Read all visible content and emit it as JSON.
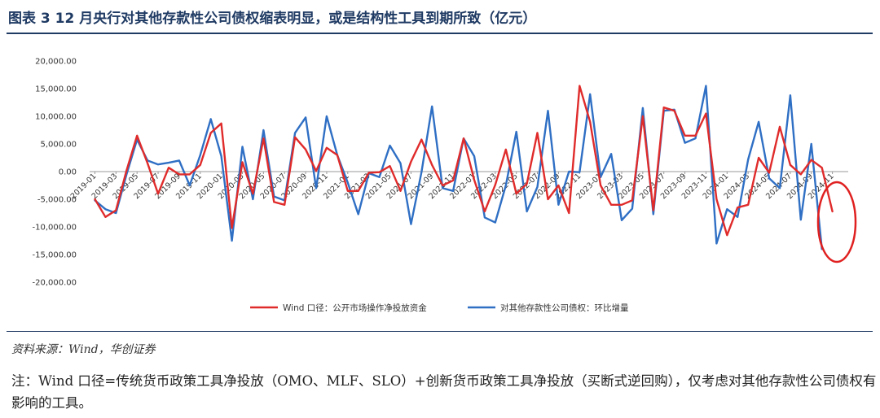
{
  "figure": {
    "title": "图表 3   12 月央行对其他存款性公司债权缩表明显，或是结构性工具到期所致（亿元）",
    "source": "资料来源：Wind，华创证券",
    "note": "注：Wind 口径=传统货币政策工具净投放（OMO、MLF、SLO）+创新货币政策工具净投放（买断式逆回购），仅考虑对其他存款性公司债权有影响的工具。"
  },
  "colors": {
    "series_red": "#e02b2b",
    "series_blue": "#2f6fc4",
    "highlight": "#e02020",
    "title": "#1f3a63"
  },
  "chart_data": {
    "type": "line",
    "title": "",
    "xlabel": "",
    "ylabel": "",
    "ylim": [
      -20000,
      20000
    ],
    "yticks": [
      -20000,
      -15000,
      -10000,
      -5000,
      0,
      5000,
      10000,
      15000,
      20000
    ],
    "ytick_labels": [
      "-20,000.00",
      "-15,000.00",
      "-10,000.00",
      "-5,000.00",
      "0.00",
      "5,000.00",
      "10,000.00",
      "15,000.00",
      "20,000.00"
    ],
    "x": [
      "2019-01",
      "2019-02",
      "2019-03",
      "2019-04",
      "2019-05",
      "2019-06",
      "2019-07",
      "2019-08",
      "2019-09",
      "2019-10",
      "2019-11",
      "2019-12",
      "2020-01",
      "2020-02",
      "2020-03",
      "2020-04",
      "2020-05",
      "2020-06",
      "2020-07",
      "2020-08",
      "2020-09",
      "2020-10",
      "2020-11",
      "2020-12",
      "2021-01",
      "2021-02",
      "2021-03",
      "2021-04",
      "2021-05",
      "2021-06",
      "2021-07",
      "2021-08",
      "2021-09",
      "2021-10",
      "2021-11",
      "2021-12",
      "2022-01",
      "2022-02",
      "2022-03",
      "2022-04",
      "2022-05",
      "2022-06",
      "2022-07",
      "2022-08",
      "2022-09",
      "2022-10",
      "2022-11",
      "2022-12",
      "2023-01",
      "2023-02",
      "2023-03",
      "2023-04",
      "2023-05",
      "2023-06",
      "2023-07",
      "2023-08",
      "2023-09",
      "2023-10",
      "2023-11",
      "2023-12",
      "2024-01",
      "2024-02",
      "2024-03",
      "2024-04",
      "2024-05",
      "2024-06",
      "2024-07",
      "2024-08",
      "2024-09",
      "2024-10",
      "2024-11",
      "2024-12"
    ],
    "tick_labels": [
      "2019-01",
      "2019-03",
      "2019-05",
      "2019-07",
      "2019-09",
      "2019-11",
      "2020-01",
      "2020-03",
      "2020-05",
      "2020-07",
      "2020-09",
      "2020-11",
      "2021-01",
      "2021-03",
      "2021-05",
      "2021-07",
      "2021-09",
      "2021-11",
      "2022-01",
      "2022-03",
      "2022-05",
      "2022-07",
      "2022-09",
      "2022-11",
      "2023-01",
      "2023-03",
      "2023-05",
      "2023-07",
      "2023-09",
      "2023-11",
      "2024-01",
      "2024-03",
      "2024-05",
      "2024-07",
      "2024-09",
      "2024-11"
    ],
    "legend_position": "bottom-center",
    "series": [
      {
        "name": "Wind 口径：公开市场操作净投放资金",
        "color": "#e02b2b",
        "values": [
          -5000,
          -8200,
          -7000,
          200,
          6500,
          1500,
          -4000,
          700,
          -500,
          -500,
          1200,
          7000,
          8700,
          -10200,
          1700,
          -4000,
          6000,
          -5500,
          -6000,
          6200,
          4000,
          100,
          4300,
          3000,
          -3500,
          -3500,
          -200,
          -100,
          1000,
          -3500,
          1800,
          5800,
          1200,
          -2500,
          -1600,
          6000,
          -1500,
          -7200,
          -2400,
          4000,
          -4000,
          -2200,
          7000,
          -5000,
          -2500,
          -7500,
          15500,
          9000,
          -2500,
          -6000,
          -6000,
          -5200,
          10000,
          -7000,
          11600,
          11000,
          6500,
          6500,
          10500,
          -5000,
          -11500,
          -6500,
          -6000,
          2500,
          -200,
          8100,
          1200,
          -500,
          2100,
          700,
          -7200,
          null
        ]
      },
      {
        "name": "对其他存款性公司债权：环比增量",
        "color": "#2f6fc4",
        "values": [
          -5200,
          -6800,
          -7500,
          -500,
          5800,
          2000,
          1300,
          1600,
          2000,
          -2500,
          3000,
          9500,
          2800,
          -12500,
          4500,
          -5000,
          7500,
          -4500,
          -5200,
          7000,
          9800,
          -3000,
          10000,
          3000,
          -2000,
          -7700,
          -300,
          -1000,
          4700,
          1500,
          -9500,
          -100,
          11800,
          -3000,
          -3500,
          6000,
          2800,
          -8300,
          -9200,
          -2500,
          7200,
          -7200,
          -2800,
          11000,
          -6000,
          0,
          -100,
          14000,
          -1000,
          3200,
          -8800,
          -6700,
          11500,
          -7700,
          11000,
          11200,
          5200,
          6000,
          15500,
          -13000,
          -6800,
          -8200,
          2200,
          9000,
          -1200,
          -3000,
          13800,
          -8700,
          5000,
          -14000,
          null,
          null
        ]
      }
    ],
    "annotations": [
      {
        "type": "ellipse",
        "label": "",
        "target": "2024-11 to 2024-12 decline"
      }
    ]
  }
}
